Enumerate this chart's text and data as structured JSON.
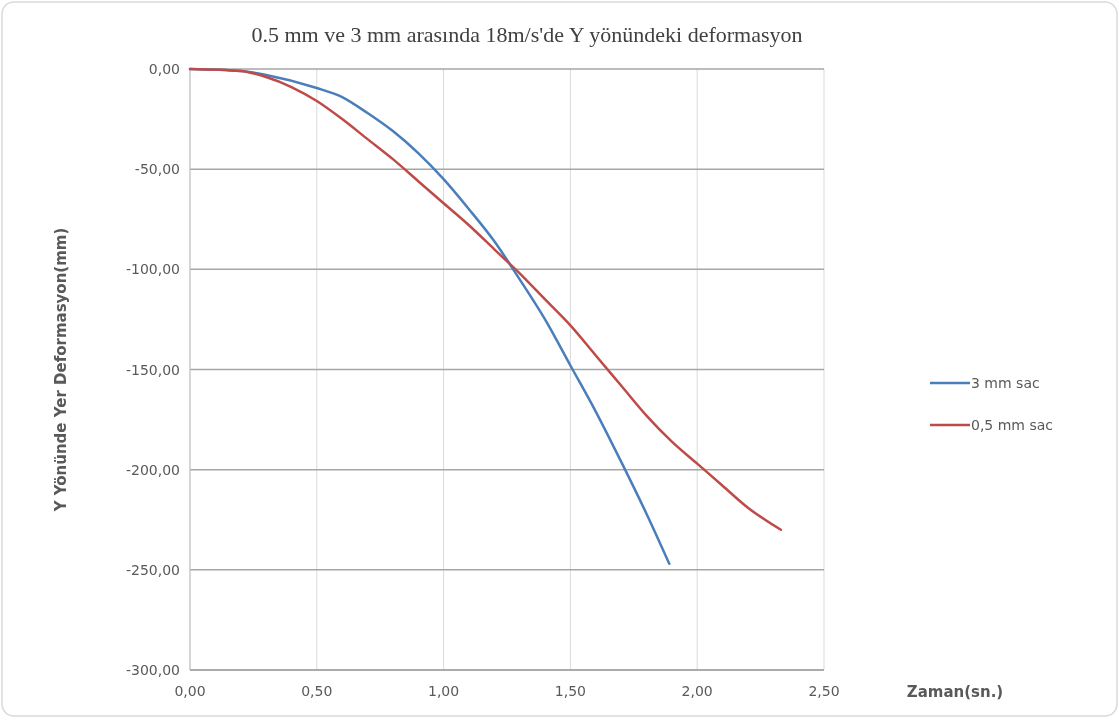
{
  "chart_data": {
    "type": "line",
    "title": "0.5 mm ve 3 mm arasında 18m/s'de Y yönündeki deformasyon",
    "xlabel": "Zaman(sn.)",
    "ylabel": "Y Yönünde Yer Deformasyon(mm)",
    "xlim": [
      0,
      2.5
    ],
    "xticks": [
      {
        "value": 0,
        "label": "0,00"
      },
      {
        "value": 0.5,
        "label": "0,50"
      },
      {
        "value": 1,
        "label": "1,00"
      },
      {
        "value": 1.5,
        "label": "1,50"
      },
      {
        "value": 2,
        "label": "2,00"
      },
      {
        "value": 2.5,
        "label": "2,50"
      }
    ],
    "ylim": [
      -300,
      0
    ],
    "yticks": [
      {
        "value": 0,
        "label": "0,00"
      },
      {
        "value": -50,
        "label": "-50,00"
      },
      {
        "value": -100,
        "label": "-100,00"
      },
      {
        "value": -150,
        "label": "-150,00"
      },
      {
        "value": -200,
        "label": "-200,00"
      },
      {
        "value": -250,
        "label": "-250,00"
      },
      {
        "value": -300,
        "label": "-300,00"
      }
    ],
    "grid": true,
    "legend": "right",
    "marker": "none",
    "line_style": "solid",
    "series": [
      {
        "name": "3 mm sac",
        "color": "#4a7ebb",
        "x": [
          0,
          0.2,
          0.3,
          0.5,
          0.6,
          0.7,
          0.8,
          0.9,
          1.0,
          1.1,
          1.2,
          1.3,
          1.4,
          1.5,
          1.6,
          1.7,
          1.8,
          1.89
        ],
        "values": [
          0,
          -1,
          -3,
          -9.5,
          -14,
          -22,
          -31,
          -42,
          -55,
          -70,
          -86,
          -105,
          -125,
          -148,
          -171,
          -196,
          -222,
          -247
        ]
      },
      {
        "name": "0,5 mm sac",
        "color": "#be4b48",
        "x": [
          0,
          0.2,
          0.3,
          0.4,
          0.5,
          0.6,
          0.7,
          0.8,
          0.9,
          1.0,
          1.1,
          1.2,
          1.3,
          1.4,
          1.5,
          1.6,
          1.7,
          1.8,
          1.9,
          2.0,
          2.1,
          2.2,
          2.33
        ],
        "values": [
          0,
          -1,
          -4,
          -9,
          -16,
          -25,
          -35,
          -45,
          -56,
          -67,
          -78,
          -90,
          -102,
          -115,
          -128,
          -143,
          -158,
          -173,
          -186,
          -197,
          -208,
          -219,
          -230
        ]
      }
    ]
  }
}
